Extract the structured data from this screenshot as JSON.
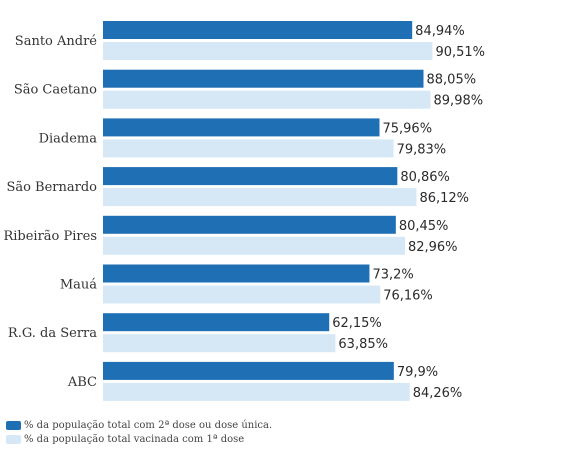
{
  "chart_data": {
    "type": "bar",
    "orientation": "horizontal",
    "categories": [
      "Santo André",
      "São Caetano",
      "Diadema",
      "São Bernardo",
      "Ribeirão Pires",
      "Mauá",
      "R.G. da Serra",
      "ABC"
    ],
    "series": [
      {
        "name": "% da população total com 2ª dose ou dose única.",
        "color": "#1f6fb4",
        "values": [
          84.94,
          88.05,
          75.96,
          80.86,
          80.45,
          73.2,
          62.15,
          79.9
        ],
        "labels": [
          "84,94%",
          "88,05%",
          "75,96%",
          "80,86%",
          "80,45%",
          "73,2%",
          "62,15%",
          "79,9%"
        ]
      },
      {
        "name": "% da população total vacinada com 1ª dose",
        "color": "#d6e8f5",
        "values": [
          90.51,
          89.98,
          79.83,
          86.12,
          82.96,
          76.16,
          63.85,
          84.26
        ],
        "labels": [
          "90,51%",
          "89,98%",
          "79,83%",
          "86,12%",
          "82,96%",
          "76,16%",
          "63,85%",
          "84,26%"
        ]
      }
    ],
    "xlim": [
      0,
      100
    ],
    "grid": false,
    "legend_position": "bottom-left"
  }
}
